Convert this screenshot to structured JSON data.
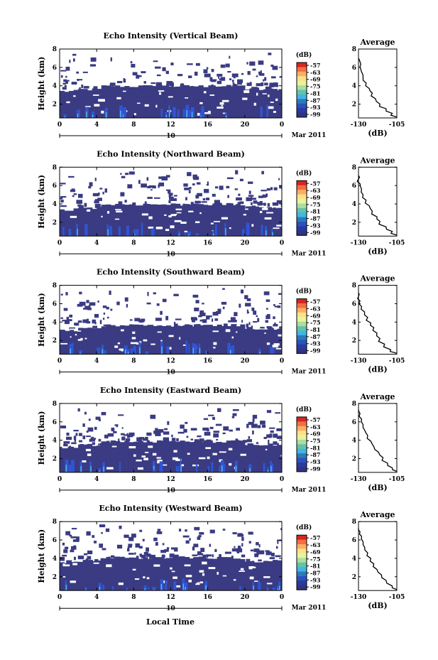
{
  "colorbar": {
    "unit": "(dB)",
    "ticks": [
      "-57",
      "-63",
      "-69",
      "-75",
      "-81",
      "-87",
      "-93",
      "-99"
    ],
    "colors": [
      "#d7261e",
      "#f46d43",
      "#fdae61",
      "#fee08b",
      "#e6f598",
      "#abdda4",
      "#66c2a5",
      "#3fb6e8",
      "#2c7bb6",
      "#2a52be",
      "#2b3aa0",
      "#30337f"
    ]
  },
  "colors": {
    "background": "#3a3b82",
    "echo": "#2f55d4",
    "echo_bright": "#4fb8e8",
    "line": "#000000"
  },
  "shared": {
    "time_ticks": [
      "0",
      "4",
      "8",
      "12",
      "16",
      "20",
      "0"
    ],
    "height_ticks": [
      "2",
      "4",
      "6",
      "8"
    ],
    "date_day": "10",
    "date_label": "Mar 2011",
    "ylabel": "Height (km)",
    "xlabel": "Local Time",
    "profile_title": "Average",
    "profile_xlabel": "(dB)",
    "profile_xticks": [
      "-130",
      "-105"
    ]
  },
  "chart_data": [
    {
      "type": "heatmap",
      "title": "Echo Intensity (Vertical Beam)",
      "x_unit": "hour",
      "xlim": [
        0,
        24
      ],
      "ylim": [
        0.5,
        8
      ],
      "profile": {
        "type": "line",
        "xlim": [
          -130,
          -105
        ],
        "ylim": [
          0.5,
          8
        ],
        "x": [
          -105,
          -108,
          -112,
          -116,
          -119,
          -121,
          -123,
          -125,
          -127,
          -128,
          -129,
          -129,
          -130
        ],
        "y": [
          0.6,
          1.0,
          1.5,
          2.0,
          2.6,
          3.2,
          3.7,
          4.3,
          4.9,
          5.5,
          6.1,
          6.6,
          7.0
        ]
      }
    },
    {
      "type": "heatmap",
      "title": "Echo Intensity (Northward Beam)",
      "x_unit": "hour",
      "xlim": [
        0,
        24
      ],
      "ylim": [
        0.5,
        8
      ],
      "profile": {
        "type": "line",
        "xlim": [
          -130,
          -105
        ],
        "ylim": [
          0.5,
          8
        ],
        "x": [
          -105,
          -108,
          -112,
          -116,
          -118,
          -121,
          -123,
          -125,
          -127,
          -128,
          -129,
          -130,
          -130
        ],
        "y": [
          0.6,
          1.0,
          1.5,
          2.1,
          2.6,
          3.2,
          3.8,
          4.4,
          5.0,
          5.6,
          6.2,
          6.7,
          7.1
        ]
      }
    },
    {
      "type": "heatmap",
      "title": "Echo Intensity (Southward Beam)",
      "x_unit": "hour",
      "xlim": [
        0,
        24
      ],
      "ylim": [
        0.5,
        8
      ],
      "profile": {
        "type": "line",
        "xlim": [
          -130,
          -105
        ],
        "ylim": [
          0.5,
          8
        ],
        "x": [
          -105,
          -109,
          -113,
          -116,
          -118,
          -120,
          -122,
          -124,
          -126,
          -128,
          -129,
          -130,
          -130
        ],
        "y": [
          0.6,
          1.0,
          1.6,
          2.2,
          2.8,
          3.4,
          3.9,
          4.5,
          5.1,
          5.7,
          6.3,
          6.8,
          7.2
        ]
      }
    },
    {
      "type": "heatmap",
      "title": "Echo Intensity (Eastward Beam)",
      "x_unit": "hour",
      "xlim": [
        0,
        24
      ],
      "ylim": [
        0.5,
        8
      ],
      "profile": {
        "type": "line",
        "xlim": [
          -130,
          -105
        ],
        "ylim": [
          0.5,
          8
        ],
        "x": [
          -105,
          -108,
          -111,
          -114,
          -117,
          -120,
          -122,
          -124,
          -126,
          -127,
          -128,
          -129,
          -130
        ],
        "y": [
          0.6,
          1.0,
          1.5,
          2.1,
          2.7,
          3.3,
          3.9,
          4.5,
          5.1,
          5.7,
          6.3,
          6.9,
          7.3
        ]
      }
    },
    {
      "type": "heatmap",
      "title": "Echo Intensity (Westward Beam)",
      "x_unit": "hour",
      "xlim": [
        0,
        24
      ],
      "ylim": [
        0.5,
        8
      ],
      "profile": {
        "type": "line",
        "xlim": [
          -130,
          -105
        ],
        "ylim": [
          0.5,
          8
        ],
        "x": [
          -105,
          -108,
          -112,
          -115,
          -118,
          -120,
          -122,
          -124,
          -126,
          -127,
          -128,
          -129,
          -130
        ],
        "y": [
          0.6,
          1.0,
          1.6,
          2.2,
          2.8,
          3.4,
          4.0,
          4.6,
          5.2,
          5.8,
          6.4,
          6.9,
          7.3
        ]
      }
    }
  ]
}
